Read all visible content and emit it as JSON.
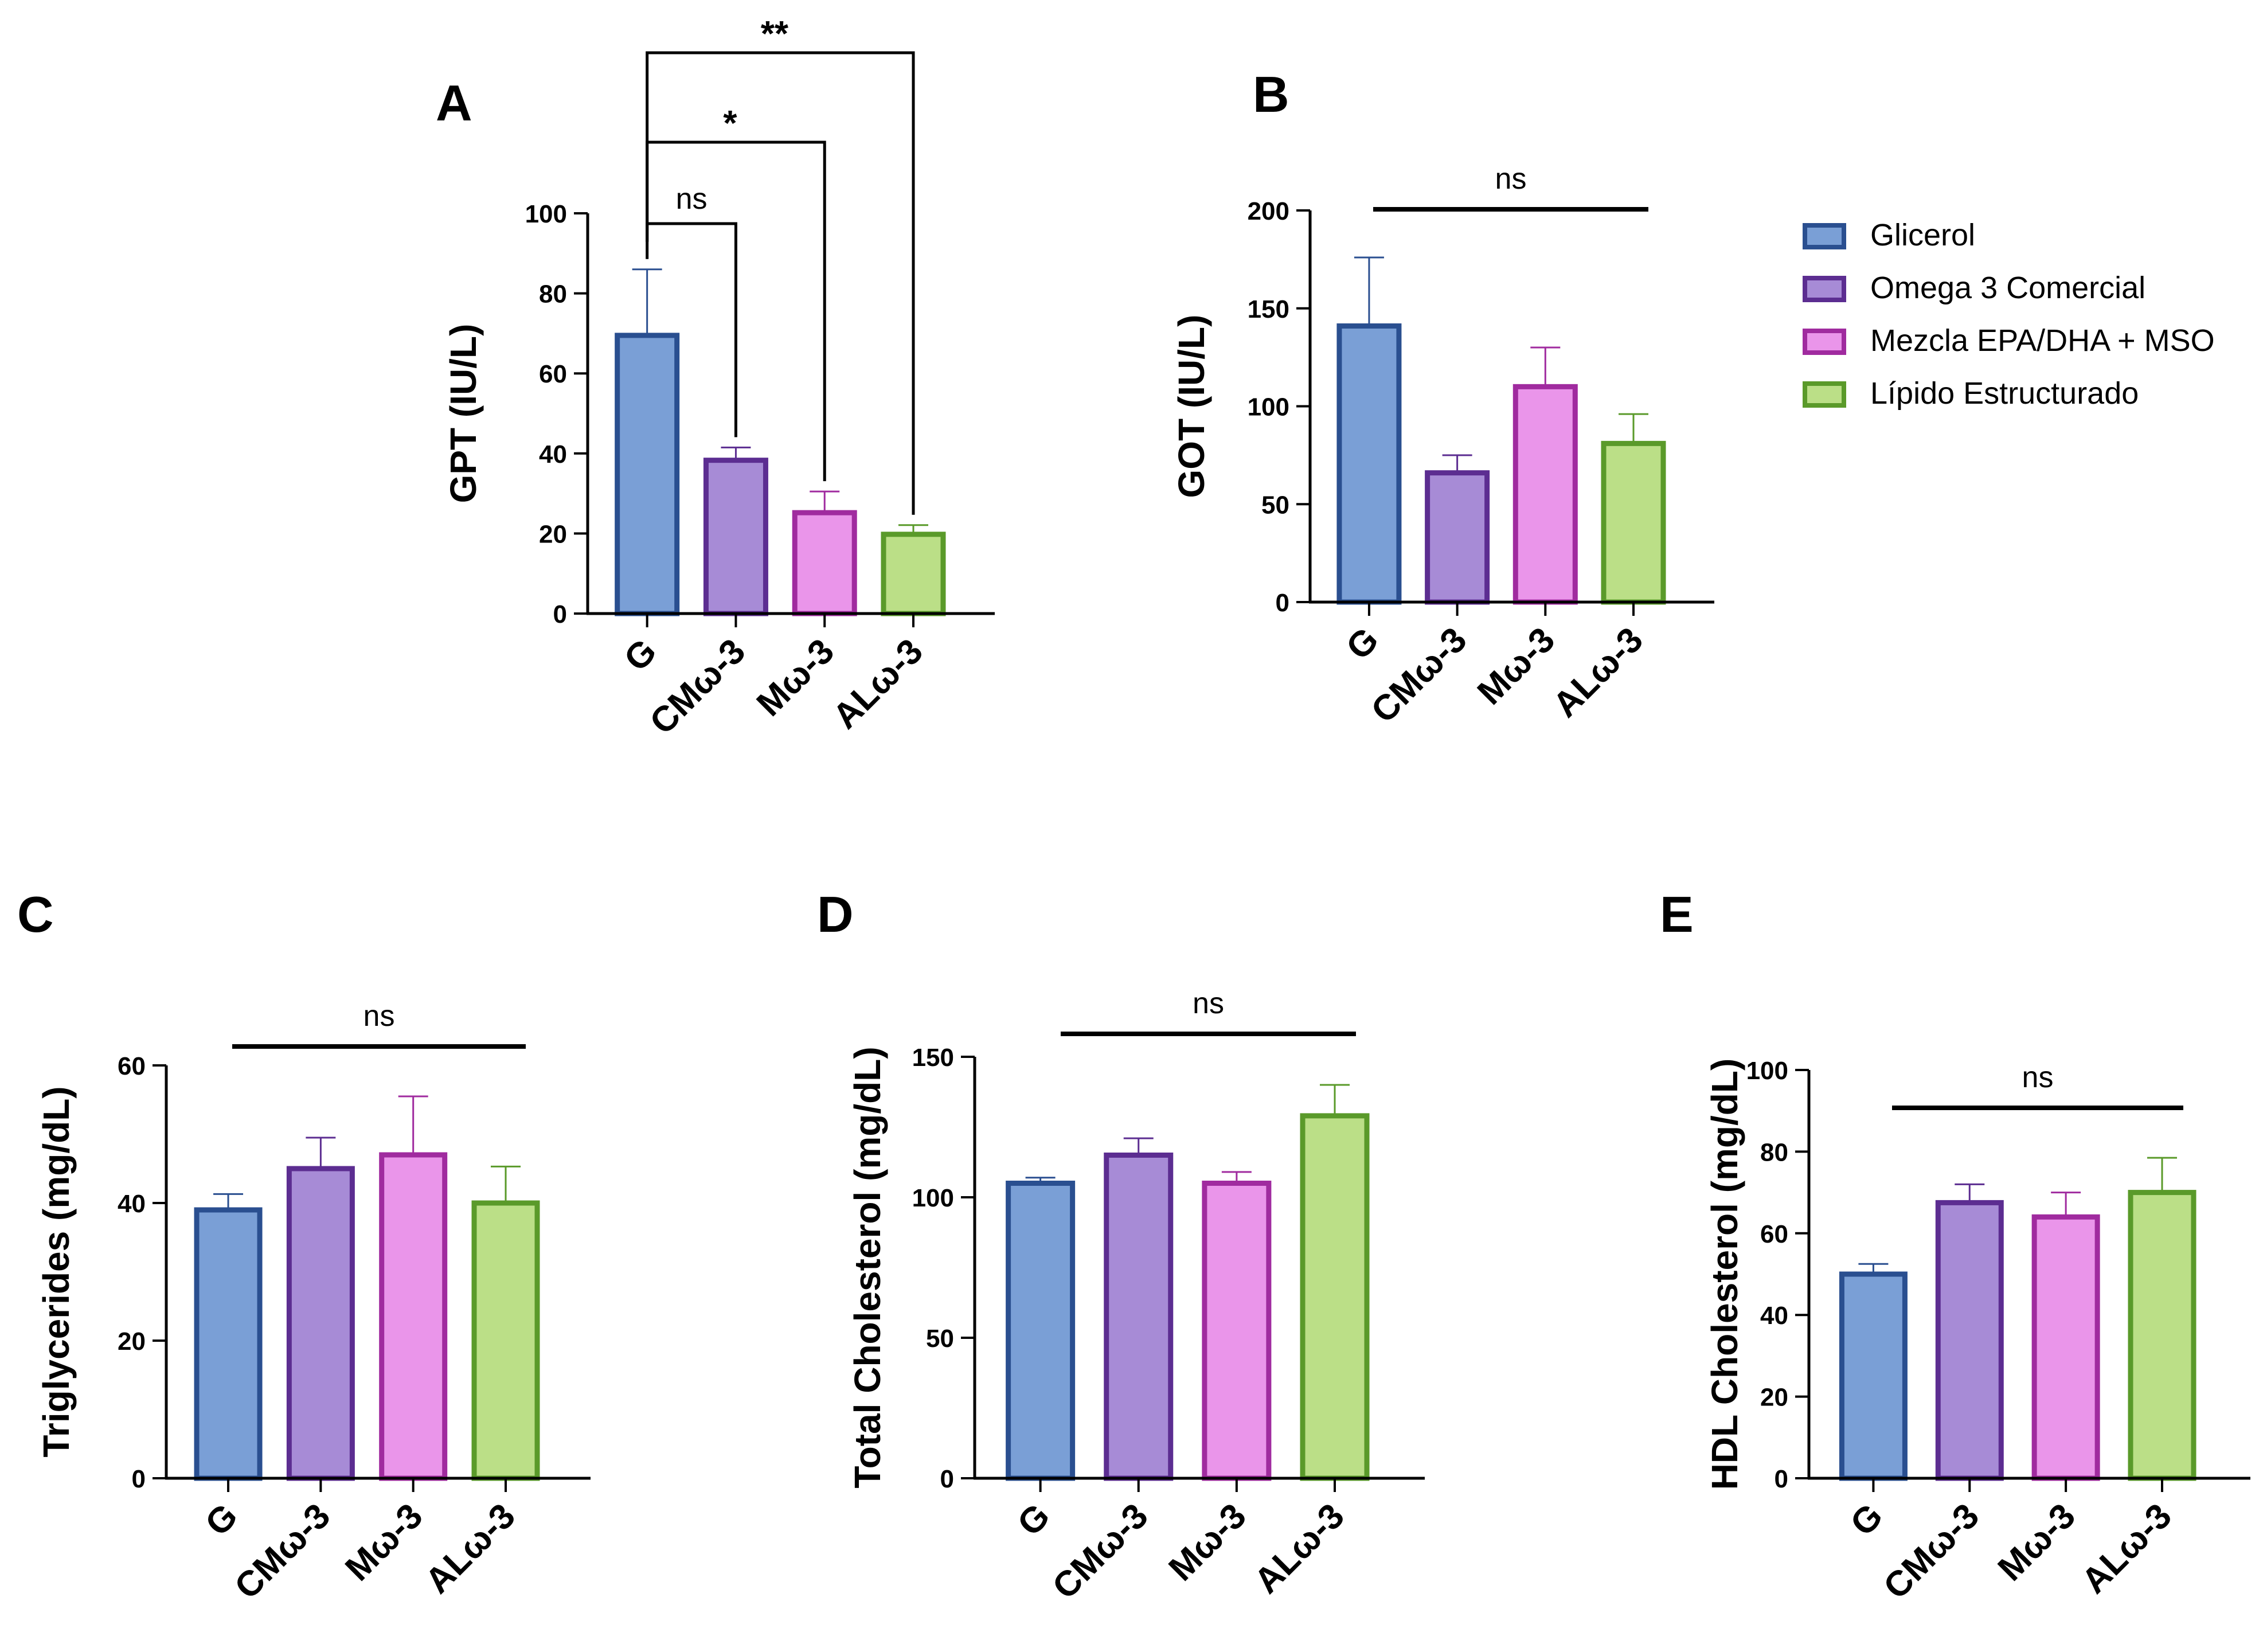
{
  "categories": [
    "G",
    "CMω-3",
    "Mω-3",
    "ALω-3"
  ],
  "colors": {
    "fills": [
      "#7a9fd6",
      "#a78bd6",
      "#ea95ea",
      "#bbdf87"
    ],
    "strokes": [
      "#2a4f90",
      "#5c2d91",
      "#a02b9f",
      "#5a9a2a"
    ]
  },
  "legend": {
    "items": [
      {
        "label": "Glicerol"
      },
      {
        "label": "Omega 3 Comercial"
      },
      {
        "label": "Mezcla EPA/DHA + MSO"
      },
      {
        "label": "Lípido Estructurado"
      }
    ]
  },
  "chart_data": [
    {
      "panel": "A",
      "type": "bar",
      "ylabel": "GPT (IU/L)",
      "ylim": [
        0,
        100
      ],
      "ticks": [
        0,
        20,
        40,
        60,
        80,
        100
      ],
      "categories": [
        "G",
        "CMω-3",
        "Mω-3",
        "ALω-3"
      ],
      "values": [
        69.5,
        38.3,
        25.2,
        19.8
      ],
      "errors": [
        16.5,
        3.2,
        5.3,
        2.3
      ],
      "significance": [
        {
          "groups": [
            "G",
            "CMω-3"
          ],
          "label": "ns"
        },
        {
          "groups": [
            "G",
            "Mω-3"
          ],
          "label": "*"
        },
        {
          "groups": [
            "G",
            "ALω-3"
          ],
          "label": "**"
        }
      ]
    },
    {
      "panel": "B",
      "type": "bar",
      "ylabel": "GOT (IU/L)",
      "ylim": [
        0,
        200
      ],
      "ticks": [
        0,
        50,
        100,
        150,
        200
      ],
      "categories": [
        "G",
        "CMω-3",
        "Mω-3",
        "ALω-3"
      ],
      "values": [
        141,
        66,
        110,
        81
      ],
      "errors": [
        35,
        9,
        20,
        15
      ],
      "significance_line": "ns"
    },
    {
      "panel": "C",
      "type": "bar",
      "ylabel": "Triglycerides (mg/dL)",
      "ylim": [
        0,
        60
      ],
      "ticks": [
        0,
        20,
        40,
        60
      ],
      "categories": [
        "G",
        "CMω-3",
        "Mω-3",
        "ALω-3"
      ],
      "values": [
        39,
        45,
        47,
        40
      ],
      "errors": [
        2.3,
        4.5,
        8.5,
        5.3
      ],
      "significance_line": "ns"
    },
    {
      "panel": "D",
      "type": "bar",
      "ylabel": "Total Cholesterol (mg/dL)",
      "ylim": [
        0,
        150
      ],
      "ticks": [
        0,
        50,
        100,
        150
      ],
      "categories": [
        "G",
        "CMω-3",
        "Mω-3",
        "ALω-3"
      ],
      "values": [
        105,
        115,
        105,
        129
      ],
      "errors": [
        2,
        6,
        4,
        11
      ],
      "significance_line": "ns"
    },
    {
      "panel": "E",
      "type": "bar",
      "ylabel": "HDL Cholesterol (mg/dL)",
      "ylim": [
        0,
        100
      ],
      "ticks": [
        0,
        20,
        40,
        60,
        80,
        100
      ],
      "categories": [
        "G",
        "CMω-3",
        "Mω-3",
        "ALω-3"
      ],
      "values": [
        50,
        67.5,
        64,
        70
      ],
      "errors": [
        2.5,
        4.5,
        6,
        8.5
      ],
      "significance_line": "ns"
    }
  ]
}
